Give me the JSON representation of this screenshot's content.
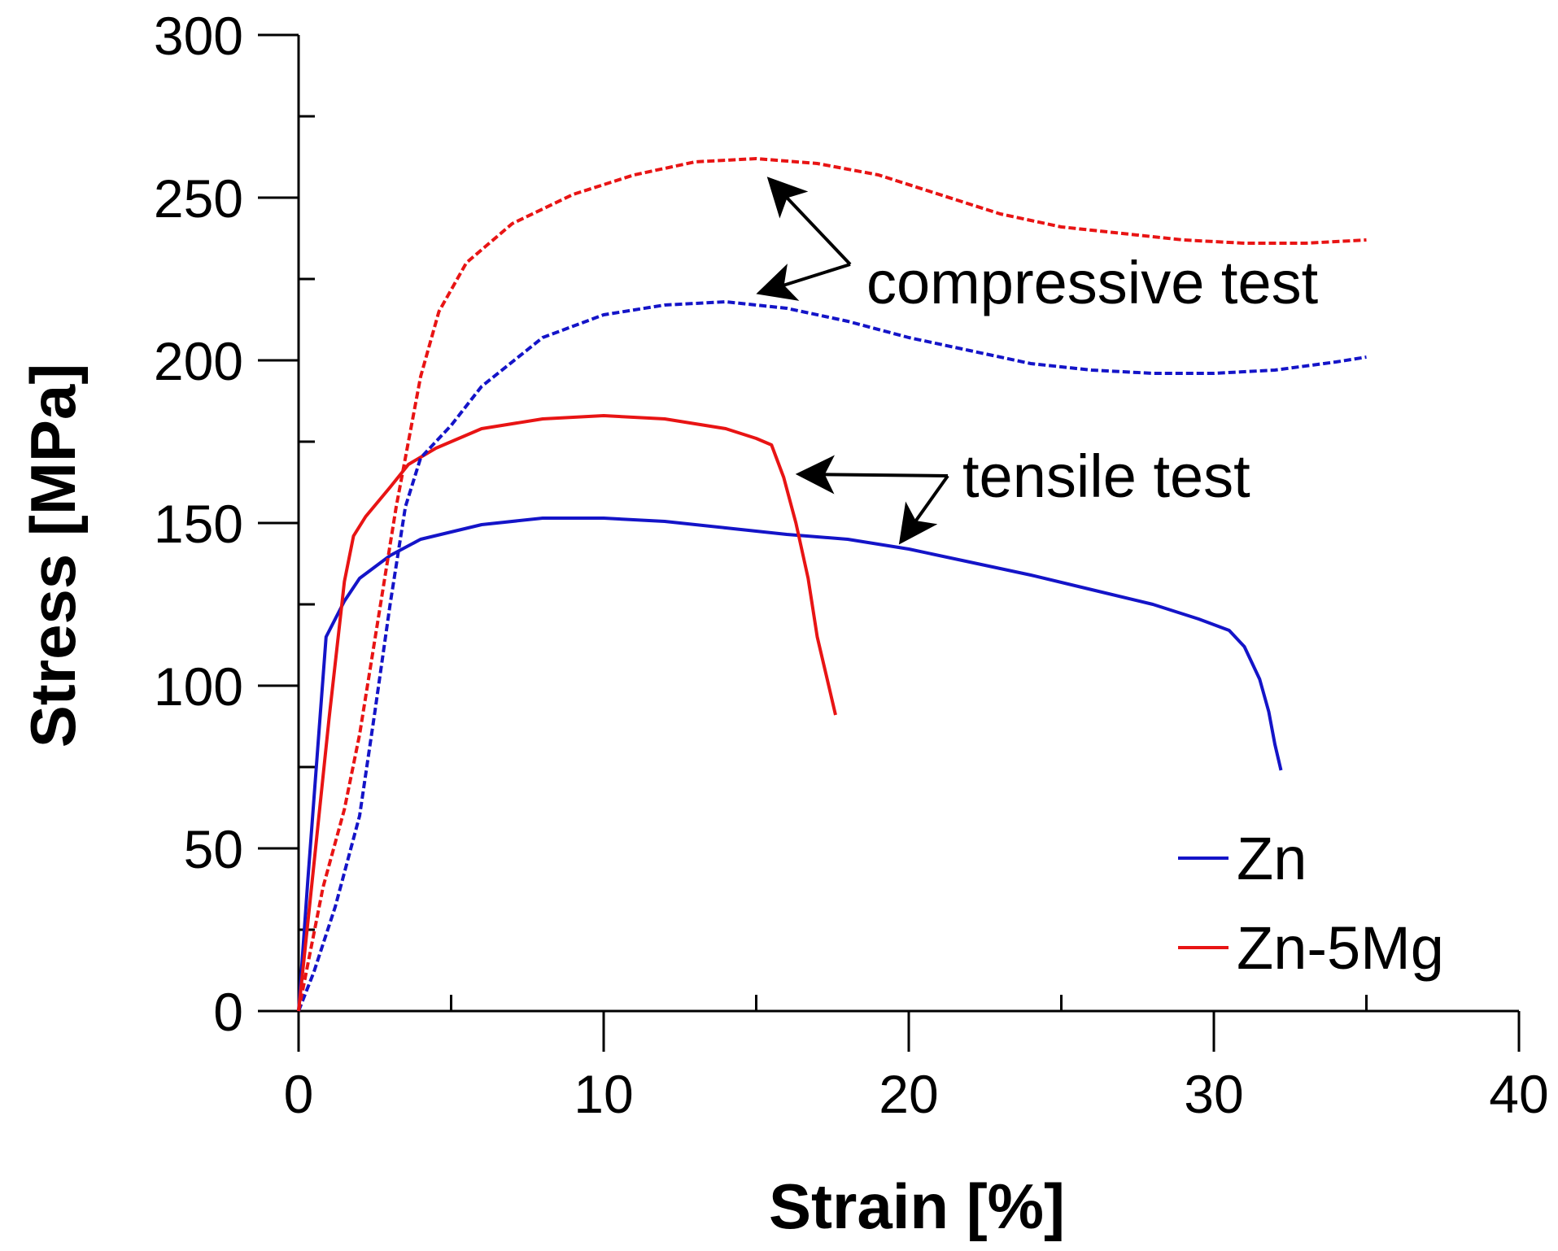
{
  "chart_data": {
    "type": "line",
    "xlabel": "Strain [%]",
    "ylabel": "Stress [MPa]",
    "xlim": [
      0,
      40
    ],
    "ylim": [
      0,
      300
    ],
    "xticks": [
      0,
      10,
      20,
      30,
      40
    ],
    "yticks": [
      0,
      50,
      100,
      150,
      200,
      250,
      300
    ],
    "grid": false,
    "legend_position": "bottom-right",
    "series": [
      {
        "name": "Zn",
        "test": "tensile",
        "style": "solid",
        "color": "#1414c8",
        "points": [
          [
            0,
            0
          ],
          [
            0.3,
            40
          ],
          [
            0.9,
            115
          ],
          [
            1.5,
            126
          ],
          [
            2,
            133
          ],
          [
            3,
            140
          ],
          [
            4,
            145
          ],
          [
            6,
            149.5
          ],
          [
            8,
            151.5
          ],
          [
            10,
            151.5
          ],
          [
            12,
            150.5
          ],
          [
            14,
            148.5
          ],
          [
            16,
            146.5
          ],
          [
            18,
            145
          ],
          [
            20,
            142
          ],
          [
            22,
            138
          ],
          [
            24,
            134
          ],
          [
            26,
            129.5
          ],
          [
            28,
            125
          ],
          [
            29.5,
            120.5
          ],
          [
            30.5,
            117
          ],
          [
            31,
            112
          ],
          [
            31.5,
            102
          ],
          [
            31.8,
            92
          ],
          [
            32,
            82
          ],
          [
            32.2,
            74
          ]
        ]
      },
      {
        "name": "Zn-5Mg",
        "test": "tensile",
        "style": "solid",
        "color": "#e81414",
        "points": [
          [
            0,
            0
          ],
          [
            0.5,
            45
          ],
          [
            1.0,
            90
          ],
          [
            1.5,
            132
          ],
          [
            1.8,
            146
          ],
          [
            2.2,
            152
          ],
          [
            3,
            161
          ],
          [
            3.6,
            168
          ],
          [
            4.5,
            173
          ],
          [
            6,
            179
          ],
          [
            8,
            182
          ],
          [
            10,
            183
          ],
          [
            12,
            182
          ],
          [
            14,
            179
          ],
          [
            15,
            176
          ],
          [
            15.5,
            174
          ],
          [
            15.9,
            164
          ],
          [
            16.3,
            150
          ],
          [
            16.7,
            133
          ],
          [
            17,
            115
          ],
          [
            17.3,
            103
          ],
          [
            17.6,
            91
          ]
        ]
      },
      {
        "name": "Zn",
        "test": "compressive",
        "style": "dashed",
        "color": "#1414c8",
        "points": [
          [
            0,
            0
          ],
          [
            0.5,
            12
          ],
          [
            1.2,
            32
          ],
          [
            2,
            60
          ],
          [
            2.5,
            92
          ],
          [
            3,
            125
          ],
          [
            3.5,
            155
          ],
          [
            4,
            170
          ],
          [
            5,
            180
          ],
          [
            6,
            192
          ],
          [
            8,
            207
          ],
          [
            10,
            214
          ],
          [
            12,
            217
          ],
          [
            14,
            218
          ],
          [
            16,
            216
          ],
          [
            18,
            212
          ],
          [
            20,
            207
          ],
          [
            22,
            203
          ],
          [
            24,
            199
          ],
          [
            26,
            197
          ],
          [
            28,
            196
          ],
          [
            30,
            196
          ],
          [
            32,
            197
          ],
          [
            34,
            199.5
          ],
          [
            35,
            201
          ]
        ]
      },
      {
        "name": "Zn-5Mg",
        "test": "compressive",
        "style": "dashed",
        "color": "#e81414",
        "points": [
          [
            0,
            0
          ],
          [
            0.8,
            38
          ],
          [
            1.5,
            62
          ],
          [
            2,
            85
          ],
          [
            2.6,
            120
          ],
          [
            3.2,
            155
          ],
          [
            3.6,
            175
          ],
          [
            4,
            195
          ],
          [
            4.6,
            215
          ],
          [
            5.5,
            230
          ],
          [
            7,
            242
          ],
          [
            9,
            251
          ],
          [
            11,
            257
          ],
          [
            13,
            261
          ],
          [
            15,
            262
          ],
          [
            17,
            260.5
          ],
          [
            19,
            257
          ],
          [
            21,
            251
          ],
          [
            23,
            245
          ],
          [
            25,
            241
          ],
          [
            27,
            239
          ],
          [
            29,
            237
          ],
          [
            31,
            236
          ],
          [
            33,
            236
          ],
          [
            35,
            237
          ]
        ]
      }
    ],
    "annotations": [
      {
        "text": "compressive test",
        "arrow_targets": [
          [
            15.5,
            255
          ],
          [
            15.2,
            221
          ]
        ]
      },
      {
        "text": "tensile test",
        "arrow_targets": [
          [
            16.5,
            165
          ],
          [
            19.8,
            145
          ]
        ]
      }
    ],
    "legend": [
      {
        "label": "Zn",
        "color": "#1414c8"
      },
      {
        "label": "Zn-5Mg",
        "color": "#e81414"
      }
    ]
  }
}
